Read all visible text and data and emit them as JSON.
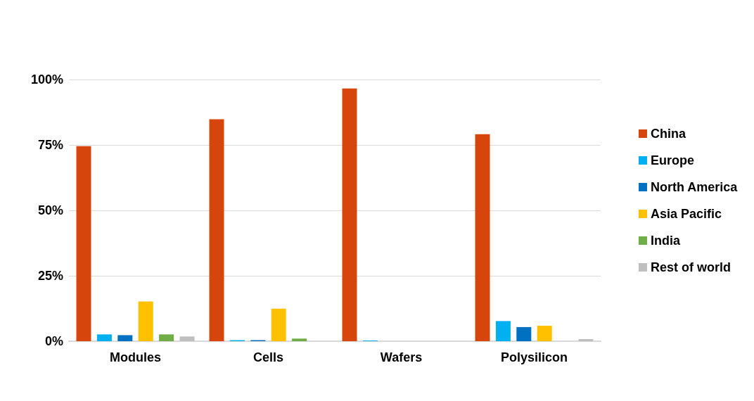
{
  "chart_data": {
    "type": "bar",
    "categories": [
      "Modules",
      "Cells",
      "Wafers",
      "Polysilicon"
    ],
    "series": [
      {
        "name": "China",
        "color": "#d6450b",
        "values": [
          74.5,
          84.8,
          96.6,
          79.1
        ]
      },
      {
        "name": "Europe",
        "color": "#00b0f0",
        "values": [
          2.6,
          0.4,
          0.3,
          7.7
        ]
      },
      {
        "name": "North America",
        "color": "#0070c0",
        "values": [
          2.3,
          0.4,
          0,
          5.4
        ]
      },
      {
        "name": "Asia Pacific",
        "color": "#ffc000",
        "values": [
          15.2,
          12.4,
          0,
          5.9
        ]
      },
      {
        "name": "India",
        "color": "#70ad47",
        "values": [
          2.6,
          1,
          0,
          0
        ]
      },
      {
        "name": "Rest of world",
        "color": "#bfbfbf",
        "values": [
          1.8,
          null,
          null,
          0.8
        ]
      }
    ],
    "ylim": [
      0,
      100
    ],
    "yticks": [
      {
        "value": 0,
        "label": "0%"
      },
      {
        "value": 25,
        "label": "25%"
      },
      {
        "value": 50,
        "label": "50%"
      },
      {
        "value": 75,
        "label": "75%"
      },
      {
        "value": 100,
        "label": "100%"
      }
    ],
    "grid": "y",
    "legend": "right"
  }
}
